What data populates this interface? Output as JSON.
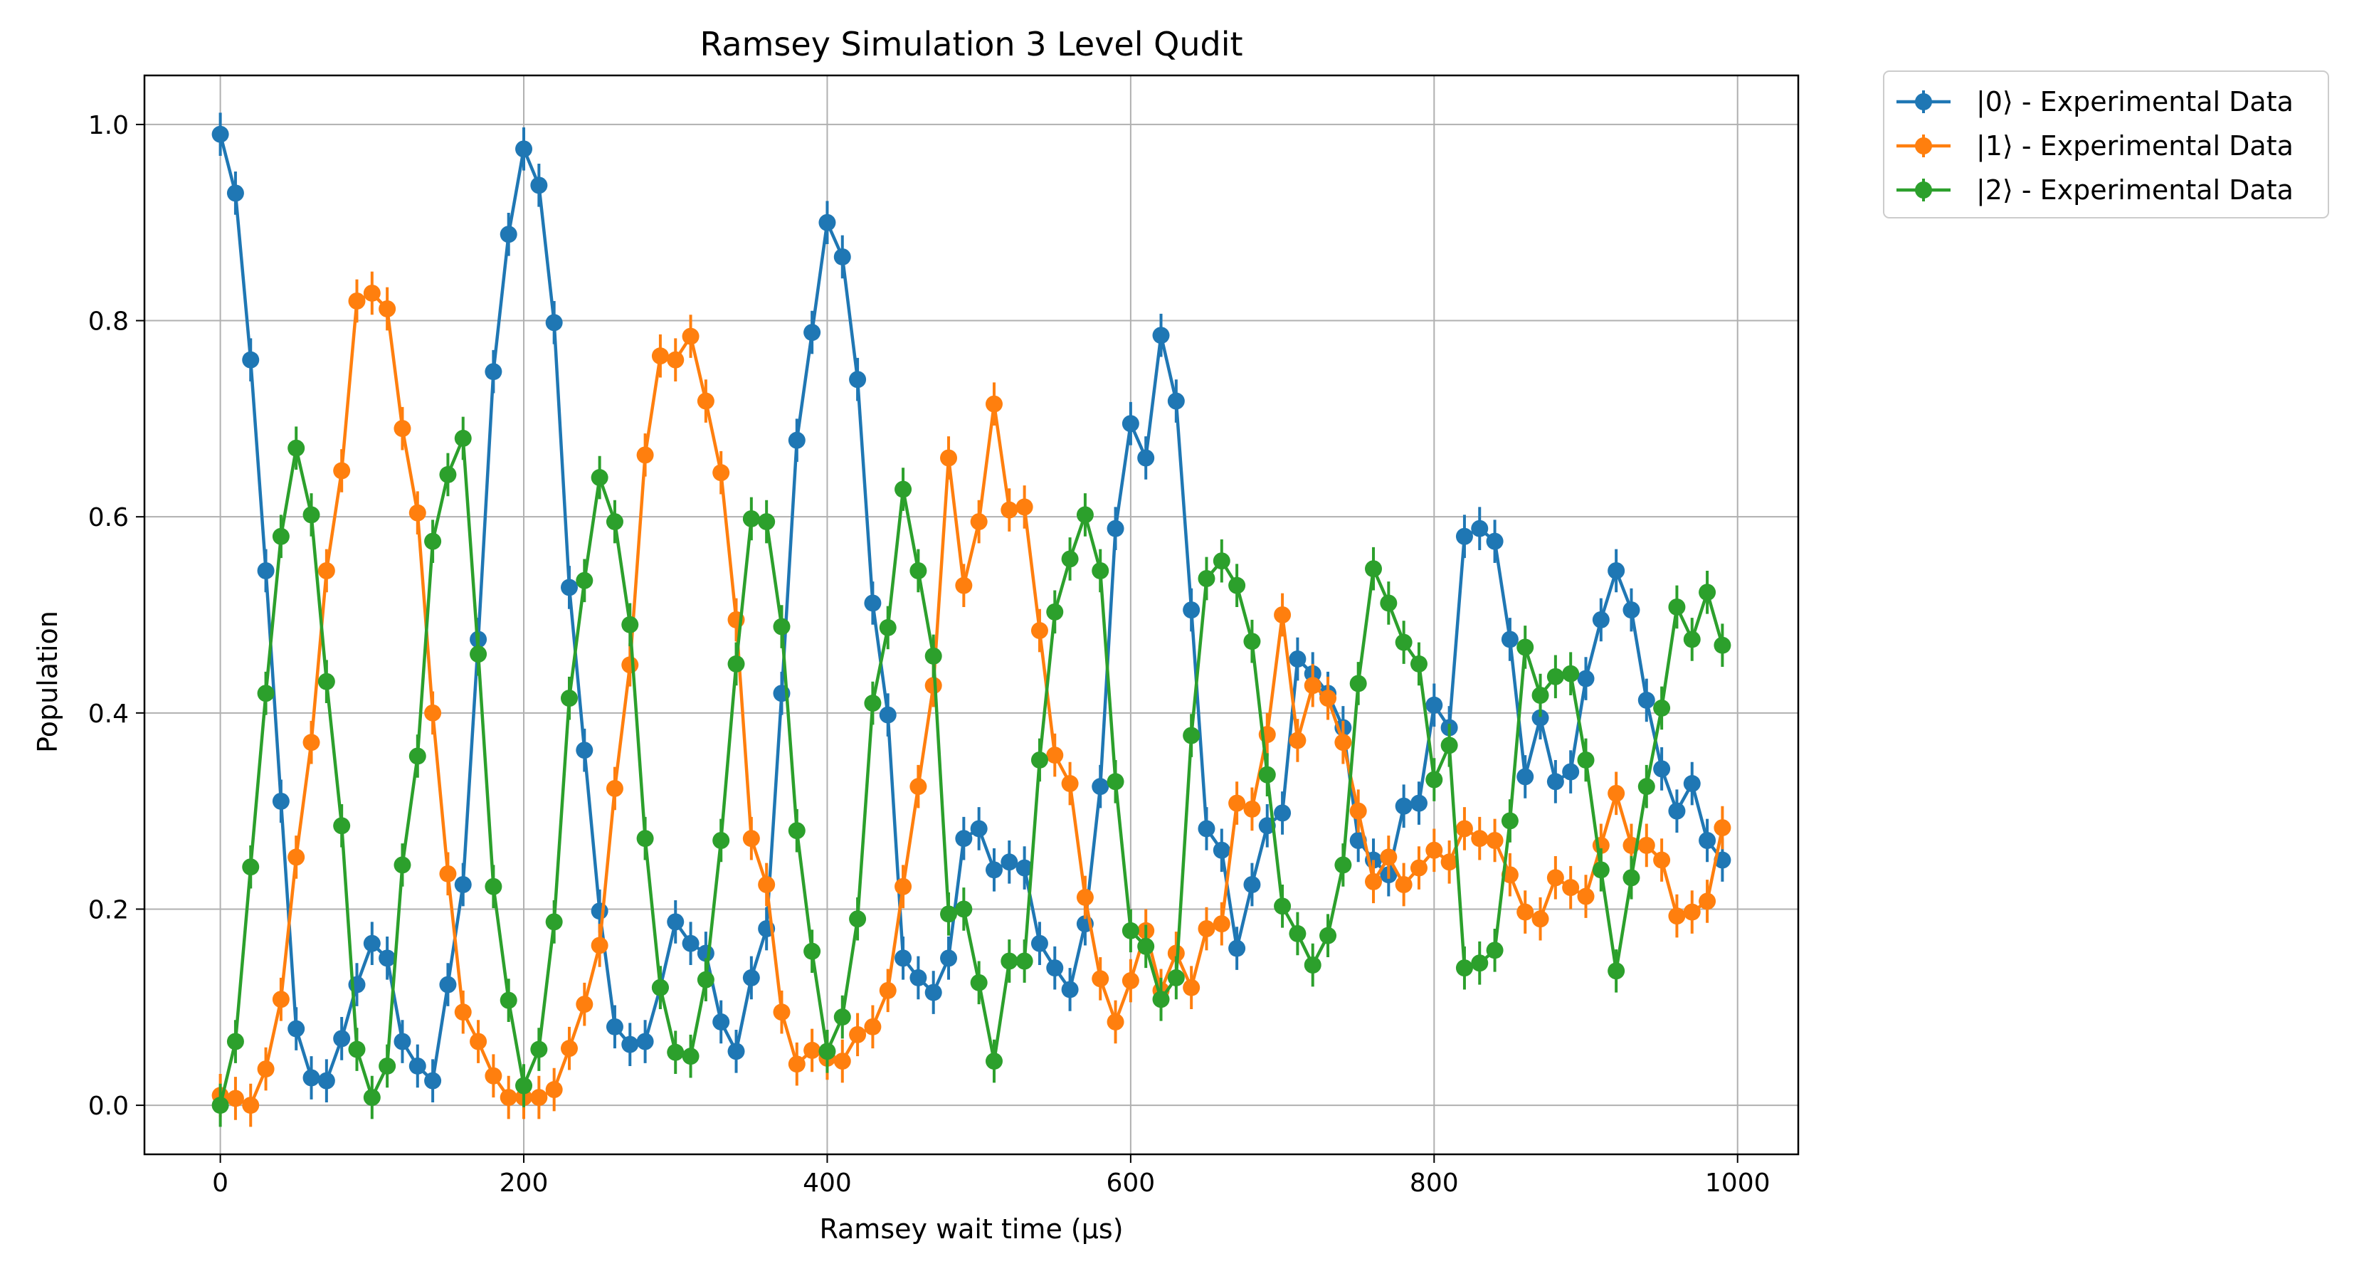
{
  "chart_data": {
    "type": "line",
    "title": "Ramsey Simulation 3 Level Qudit",
    "xlabel": "Ramsey wait time (μs)",
    "ylabel": "Population",
    "xlim": [
      -50,
      1040
    ],
    "ylim": [
      -0.05,
      1.05
    ],
    "xticks": [
      0,
      200,
      400,
      600,
      800,
      1000
    ],
    "xtick_labels": [
      "0",
      "200",
      "400",
      "600",
      "800",
      "1000"
    ],
    "yticks": [
      0.0,
      0.2,
      0.4,
      0.6,
      0.8,
      1.0
    ],
    "ytick_labels": [
      "0.0",
      "0.2",
      "0.4",
      "0.6",
      "0.8",
      "1.0"
    ],
    "grid": true,
    "legend_position": "outside-top-right",
    "x_start": 0,
    "x_step": 10,
    "series": [
      {
        "name": "|0⟩ - Experimental Data",
        "color": "#1f77b4",
        "values": [
          0.99,
          0.93,
          0.76,
          0.545,
          0.31,
          0.078,
          0.028,
          0.025,
          0.068,
          0.123,
          0.165,
          0.15,
          0.065,
          0.04,
          0.025,
          0.123,
          0.225,
          0.475,
          0.748,
          0.888,
          0.975,
          0.938,
          0.798,
          0.528,
          0.362,
          0.198,
          0.08,
          0.062,
          0.065,
          0.12,
          0.187,
          0.165,
          0.155,
          0.085,
          0.055,
          0.13,
          0.18,
          0.42,
          0.678,
          0.788,
          0.9,
          0.865,
          0.74,
          0.512,
          0.398,
          0.15,
          0.13,
          0.115,
          0.15,
          0.272,
          0.282,
          0.24,
          0.248,
          0.242,
          0.165,
          0.14,
          0.118,
          0.185,
          0.325,
          0.588,
          0.695,
          0.66,
          0.785,
          0.718,
          0.505,
          0.282,
          0.26,
          0.16,
          0.225,
          0.285,
          0.298,
          0.455,
          0.44,
          0.42,
          0.385,
          0.27,
          0.25,
          0.235,
          0.305,
          0.308,
          0.408,
          0.385,
          0.58,
          0.588,
          0.575,
          0.475,
          0.335,
          0.395,
          0.33,
          0.34,
          0.435,
          0.495,
          0.545,
          0.505,
          0.413,
          0.343,
          0.3,
          0.328,
          0.27,
          0.25
        ]
      },
      {
        "name": "|1⟩ - Experimental Data",
        "color": "#ff7f0e",
        "values": [
          0.01,
          0.007,
          0.0,
          0.037,
          0.108,
          0.253,
          0.37,
          0.545,
          0.647,
          0.82,
          0.828,
          0.812,
          0.69,
          0.604,
          0.4,
          0.236,
          0.095,
          0.065,
          0.03,
          0.008,
          0.008,
          0.008,
          0.016,
          0.058,
          0.103,
          0.163,
          0.323,
          0.449,
          0.663,
          0.764,
          0.76,
          0.784,
          0.718,
          0.645,
          0.495,
          0.272,
          0.225,
          0.095,
          0.042,
          0.056,
          0.048,
          0.045,
          0.072,
          0.08,
          0.117,
          0.223,
          0.325,
          0.428,
          0.66,
          0.53,
          0.595,
          0.715,
          0.607,
          0.61,
          0.484,
          0.357,
          0.328,
          0.212,
          0.129,
          0.085,
          0.127,
          0.178,
          0.117,
          0.155,
          0.12,
          0.18,
          0.185,
          0.308,
          0.302,
          0.378,
          0.5,
          0.372,
          0.428,
          0.415,
          0.37,
          0.3,
          0.228,
          0.253,
          0.225,
          0.242,
          0.26,
          0.248,
          0.282,
          0.272,
          0.27,
          0.235,
          0.197,
          0.19,
          0.232,
          0.222,
          0.213,
          0.265,
          0.318,
          0.265,
          0.265,
          0.25,
          0.193,
          0.197,
          0.208,
          0.283
        ]
      },
      {
        "name": "|2⟩ - Experimental Data",
        "color": "#2ca02c",
        "values": [
          0.0,
          0.065,
          0.243,
          0.42,
          0.58,
          0.67,
          0.602,
          0.432,
          0.285,
          0.057,
          0.008,
          0.04,
          0.245,
          0.356,
          0.575,
          0.643,
          0.68,
          0.46,
          0.223,
          0.107,
          0.02,
          0.057,
          0.187,
          0.415,
          0.535,
          0.64,
          0.595,
          0.49,
          0.272,
          0.12,
          0.054,
          0.05,
          0.128,
          0.27,
          0.45,
          0.598,
          0.595,
          0.488,
          0.28,
          0.157,
          0.055,
          0.09,
          0.19,
          0.41,
          0.487,
          0.628,
          0.545,
          0.458,
          0.195,
          0.2,
          0.125,
          0.045,
          0.147,
          0.147,
          0.352,
          0.503,
          0.557,
          0.602,
          0.545,
          0.33,
          0.178,
          0.162,
          0.108,
          0.13,
          0.377,
          0.537,
          0.555,
          0.53,
          0.473,
          0.337,
          0.203,
          0.175,
          0.143,
          0.173,
          0.245,
          0.43,
          0.547,
          0.512,
          0.472,
          0.45,
          0.332,
          0.367,
          0.14,
          0.145,
          0.158,
          0.29,
          0.467,
          0.418,
          0.437,
          0.44,
          0.352,
          0.24,
          0.137,
          0.232,
          0.325,
          0.405,
          0.508,
          0.475,
          0.523,
          0.469
        ]
      }
    ]
  }
}
